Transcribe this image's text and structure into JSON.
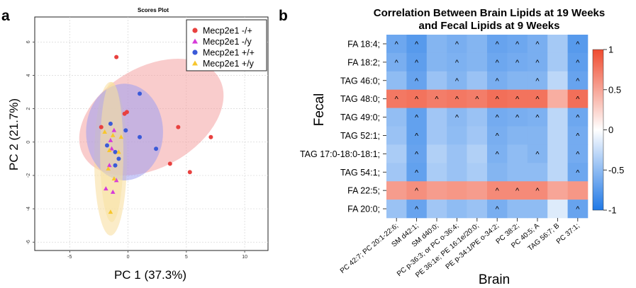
{
  "panel_a": {
    "label": "a",
    "chart_data": {
      "type": "scatter",
      "title": "Scores Plot",
      "xlabel": "PC 1 (37.3%)",
      "ylabel": "PC 2 (21.7%)",
      "xlim": [
        -8,
        12
      ],
      "ylim": [
        -6.5,
        7.5
      ],
      "xticks": [
        -5,
        0,
        5,
        10
      ],
      "yticks": [
        -6,
        -4,
        -2,
        0,
        2,
        4,
        6
      ],
      "xtick_labels": [
        "-5",
        "0",
        "5",
        "10"
      ],
      "ytick_labels": [
        "-6",
        "-4",
        "-2",
        "0",
        "2",
        "4",
        "6"
      ],
      "grid": true,
      "legend_position": "top-right",
      "series": [
        {
          "name": "Mecp2e1 -/+",
          "marker": "circle",
          "color": "#e8413f",
          "ellipse_color": "#f4a3a3",
          "ellipse": {
            "cx": 2.0,
            "cy": 1.5,
            "rx": 6.7,
            "ry": 3.0,
            "angle": -30
          },
          "points": [
            [
              -1,
              5.1
            ],
            [
              -2.3,
              0.9
            ],
            [
              -0.3,
              1.7
            ],
            [
              -0.1,
              1.8
            ],
            [
              4.3,
              0.9
            ],
            [
              7.1,
              0.3
            ],
            [
              3.6,
              -1.3
            ],
            [
              5.3,
              -1.8
            ]
          ]
        },
        {
          "name": "Mecp2e1 -/y",
          "marker": "triangle",
          "color": "#d63ad9",
          "ellipse_color": "#f8dc9a",
          "ellipse": {
            "cx": -1.5,
            "cy": -1.0,
            "rx": 1.4,
            "ry": 4.6,
            "angle": 0
          },
          "points": [
            [
              -1.2,
              0.7
            ],
            [
              -1.5,
              0.1
            ],
            [
              -1.4,
              -0.4
            ],
            [
              -1.6,
              -1.4
            ],
            [
              -1.9,
              -2.8
            ],
            [
              -1.0,
              -2.3
            ],
            [
              -1.3,
              -3.0
            ]
          ]
        },
        {
          "name": "Mecp2e1 +/+",
          "marker": "circle",
          "color": "#3a5ad8",
          "ellipse_color": "#9f9ff0",
          "ellipse": {
            "cx": -0.3,
            "cy": 0.6,
            "rx": 3.3,
            "ry": 2.9,
            "angle": 0
          },
          "points": [
            [
              1.0,
              2.9
            ],
            [
              -1.5,
              1.1
            ],
            [
              -0.2,
              0.7
            ],
            [
              1.0,
              0.3
            ],
            [
              2.4,
              -0.4
            ],
            [
              -1.8,
              -0.2
            ],
            [
              -1.1,
              -0.6
            ],
            [
              -0.8,
              -1.0
            ],
            [
              -1.1,
              -1.4
            ]
          ]
        },
        {
          "name": "Mecp2e1 +/y",
          "marker": "triangle",
          "color": "#f7c62c",
          "ellipse_color": "#f8e2a0",
          "ellipse": {
            "cx": -1.4,
            "cy": -0.6,
            "rx": 1.0,
            "ry": 4.2,
            "angle": 0
          },
          "points": [
            [
              -2.0,
              0.6
            ],
            [
              -1.3,
              0.4
            ],
            [
              -0.6,
              0.3
            ],
            [
              -1.6,
              -0.5
            ],
            [
              -0.8,
              -0.6
            ],
            [
              -1.7,
              -1.6
            ],
            [
              -1.2,
              -2.2
            ],
            [
              -1.5,
              -4.2
            ]
          ]
        }
      ]
    }
  },
  "panel_b": {
    "label": "b",
    "chart_data": {
      "type": "heatmap",
      "title": "Correlation Between Brain Lipids at 19 Weeks and Fecal Lipids at 9 Weeks",
      "title_lines": [
        "Correlation Between Brain Lipids at 19 Weeks",
        "and Fecal Lipids at 9 Weeks"
      ],
      "xlabel": "Brain",
      "ylabel": "Fecal",
      "rows": [
        "FA 18:4;",
        "FA 18:2;",
        "TAG 46:0;",
        "TAG 48:0;",
        "TAG 49:0;",
        "TAG 52:1;",
        "TAG 17:0-18:0-18:1;",
        "TAG 54:1;",
        "FA 22:5;",
        "FA 20:0;"
      ],
      "columns": [
        "PC 42:7; PC 20:1-22:6;",
        "SM d42:1;",
        "SM d40:0;",
        "PC p-36:3; or PC o-36:4;",
        "PE 36:1e; PE 16:1e/20:0;",
        "PE p-34:1/PE o-34:2;",
        "PC 38:2;",
        "PC 40:5; A",
        "TAG 56:7; B",
        "PC 37:1;"
      ],
      "values": [
        [
          -0.65,
          -0.75,
          -0.55,
          -0.6,
          -0.55,
          -0.68,
          -0.65,
          -0.6,
          -0.4,
          -0.75
        ],
        [
          -0.6,
          -0.72,
          -0.55,
          -0.58,
          -0.55,
          -0.65,
          -0.62,
          -0.6,
          -0.4,
          -0.72
        ],
        [
          -0.5,
          -0.68,
          -0.45,
          -0.55,
          -0.45,
          -0.6,
          -0.55,
          -0.55,
          -0.3,
          -0.68
        ],
        [
          0.75,
          0.78,
          0.72,
          0.75,
          0.72,
          0.8,
          0.78,
          0.78,
          0.45,
          0.8
        ],
        [
          -0.48,
          -0.7,
          -0.42,
          -0.52,
          -0.45,
          -0.62,
          -0.6,
          -0.58,
          -0.3,
          -0.65
        ],
        [
          -0.45,
          -0.7,
          -0.42,
          -0.5,
          -0.42,
          -0.6,
          -0.55,
          -0.55,
          -0.3,
          -0.62
        ],
        [
          -0.38,
          -0.68,
          -0.35,
          -0.45,
          -0.35,
          -0.58,
          -0.5,
          -0.55,
          -0.3,
          -0.62
        ],
        [
          -0.42,
          -0.7,
          -0.38,
          -0.45,
          -0.38,
          -0.55,
          -0.5,
          -0.5,
          -0.3,
          -0.65
        ],
        [
          0.55,
          0.62,
          0.55,
          0.58,
          0.55,
          0.65,
          0.65,
          0.65,
          0.5,
          0.58
        ],
        [
          -0.45,
          -0.68,
          -0.42,
          -0.5,
          -0.45,
          -0.6,
          -0.5,
          -0.5,
          -0.15,
          -0.68
        ]
      ],
      "significance_symbol": "^",
      "significant": [
        [
          1,
          1,
          0,
          1,
          0,
          1,
          1,
          1,
          0,
          1
        ],
        [
          1,
          1,
          0,
          1,
          0,
          1,
          1,
          1,
          0,
          1
        ],
        [
          0,
          1,
          0,
          1,
          0,
          1,
          0,
          1,
          0,
          1
        ],
        [
          1,
          1,
          1,
          1,
          1,
          1,
          1,
          1,
          0,
          1
        ],
        [
          0,
          1,
          0,
          1,
          0,
          1,
          1,
          1,
          0,
          1
        ],
        [
          0,
          1,
          0,
          0,
          0,
          1,
          0,
          0,
          0,
          1
        ],
        [
          0,
          1,
          0,
          0,
          0,
          1,
          0,
          1,
          0,
          1
        ],
        [
          0,
          1,
          0,
          0,
          0,
          0,
          0,
          0,
          0,
          1
        ],
        [
          0,
          1,
          0,
          0,
          0,
          1,
          1,
          1,
          0,
          0
        ],
        [
          0,
          1,
          0,
          0,
          0,
          1,
          0,
          0,
          0,
          1
        ]
      ],
      "colorbar": {
        "range": [
          -1,
          1
        ],
        "ticks": [
          1,
          0.5,
          0,
          -0.5,
          -1
        ],
        "tick_labels": [
          "1",
          "0.5",
          "0",
          "-0.5",
          "-1"
        ],
        "low_color": "#1f78e6",
        "mid_color": "#ffffff",
        "high_color": "#ef4b2f"
      }
    }
  }
}
